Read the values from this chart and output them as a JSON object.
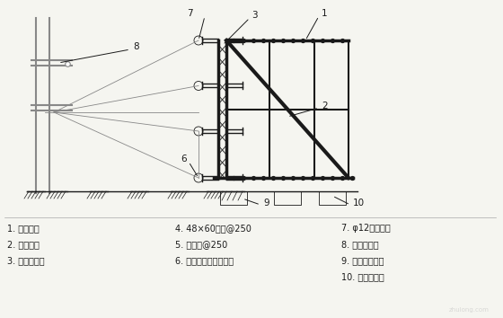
{
  "bg_color": "#f5f5f0",
  "line_color": "#1a1a1a",
  "gray_color": "#888888",
  "legend_items": [
    "1. 受力锤筋",
    "2. 锤筋支架",
    "3. 双面覆膜板",
    "4. 48×60木方@250",
    "5. 脚手管@250",
    "6. 脚手管（横向围檀）",
    "7. φ12对拉螺栋",
    "8. 脚手管支撑",
    "9. 混凝土垫层面",
    "10. 混凝土管桅"
  ],
  "watermark": "zhulong.com"
}
